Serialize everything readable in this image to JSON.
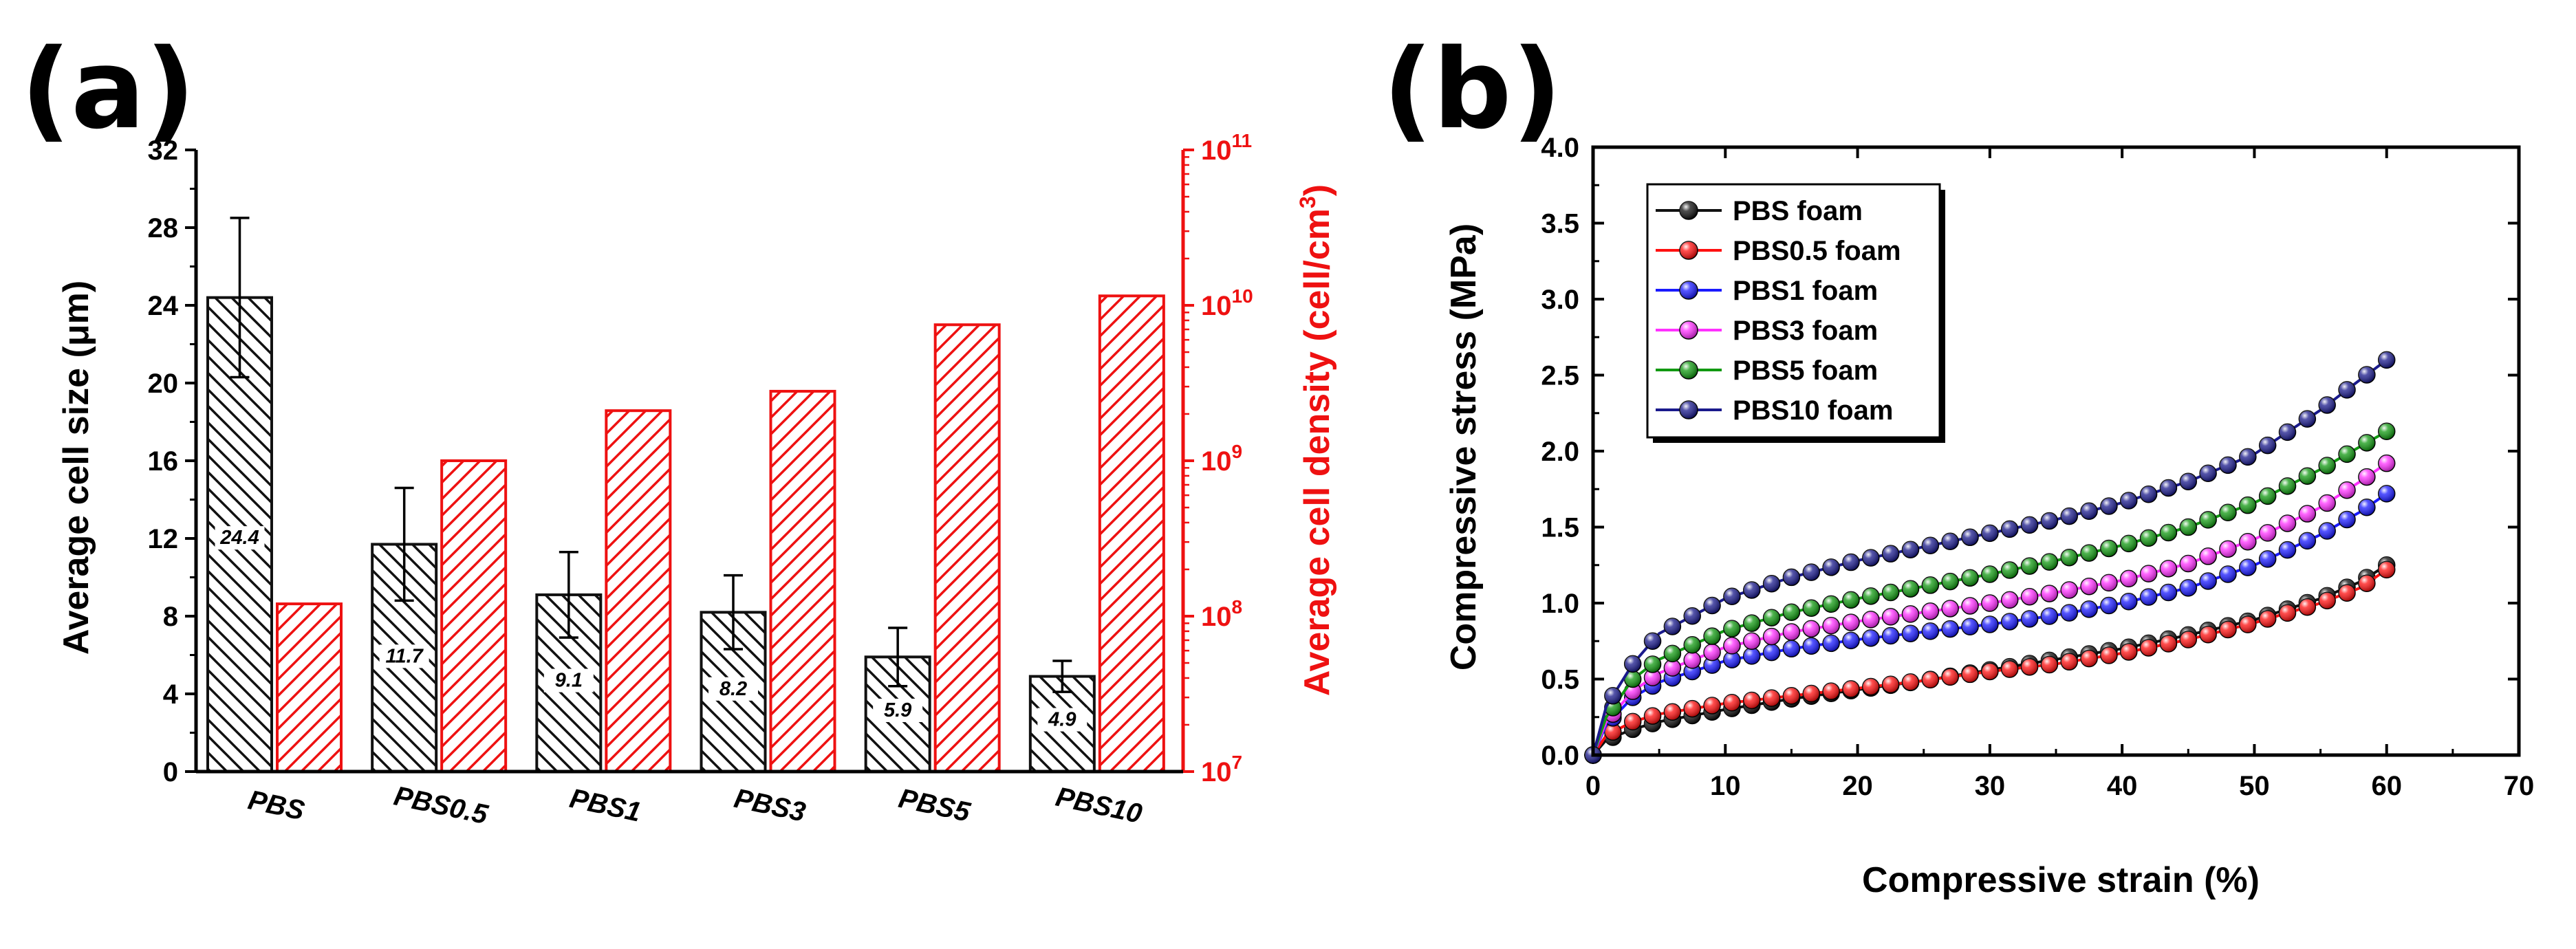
{
  "figure": {
    "panel_a_label": "(a)",
    "panel_b_label": "(b)"
  },
  "colors": {
    "bar_black": "#111111",
    "bar_red": "#ee1111",
    "series": [
      "#111111",
      "#ff1010",
      "#1a1aff",
      "#ff30ff",
      "#119911",
      "#1a1a8c"
    ]
  },
  "chart_data": [
    {
      "type": "bar",
      "title": "",
      "categories": [
        "PBS",
        "PBS0.5",
        "PBS1",
        "PBS3",
        "PBS5",
        "PBS10"
      ],
      "xlabel": "",
      "ylabel": "Average cell size (μm)",
      "ylim": [
        0,
        32
      ],
      "yticks": [
        0,
        4,
        8,
        12,
        16,
        20,
        24,
        28,
        32
      ],
      "y2label_main": "Average cell density (cell/cm",
      "y2label_sup": "3",
      "y2label_end": ")",
      "y2scale": "log",
      "y2lim_exponent": [
        7,
        11
      ],
      "y2ticks": [
        {
          "base": "10",
          "exp": "7",
          "power": 7
        },
        {
          "base": "10",
          "exp": "8",
          "power": 8
        },
        {
          "base": "10",
          "exp": "9",
          "power": 9
        },
        {
          "base": "10",
          "exp": "10",
          "power": 10
        },
        {
          "base": "10",
          "exp": "11",
          "power": 11
        }
      ],
      "series": [
        {
          "name": "Average cell size",
          "axis": "left",
          "color": "#111111",
          "hatch": "back-diagonal",
          "values": [
            24.4,
            11.7,
            9.1,
            8.2,
            5.9,
            4.9
          ],
          "labels": [
            "24.4",
            "11.7",
            "9.1",
            "8.2",
            "5.9",
            "4.9"
          ],
          "errors": [
            4.1,
            2.9,
            2.2,
            1.9,
            1.5,
            0.8
          ]
        },
        {
          "name": "Average cell density",
          "axis": "right",
          "color": "#ee1111",
          "hatch": "forward-diagonal",
          "values": [
            120000000.0,
            1000000000.0,
            2100000000.0,
            2800000000.0,
            7500000000.0,
            11500000000.0
          ]
        }
      ]
    },
    {
      "type": "scatter",
      "title": "",
      "xlabel": "Compressive strain (%)",
      "ylabel": "Compressive stress (MPa)",
      "xlim": [
        0,
        70
      ],
      "ylim": [
        0,
        4.0
      ],
      "xticks": [
        "0",
        "10",
        "20",
        "30",
        "40",
        "50",
        "60",
        "70"
      ],
      "yticks": [
        "0.0",
        "0.5",
        "1.0",
        "1.5",
        "2.0",
        "2.5",
        "3.0",
        "3.5",
        "4.0"
      ],
      "legend_position": "top-left",
      "marker_step_percent": 1.5,
      "series": [
        {
          "name": "PBS foam",
          "color": "#111111",
          "x": [
            0,
            1,
            3,
            5,
            10,
            15,
            20,
            25,
            30,
            35,
            40,
            45,
            50,
            55,
            58,
            60
          ],
          "y": [
            0.0,
            0.1,
            0.17,
            0.22,
            0.3,
            0.37,
            0.43,
            0.49,
            0.56,
            0.63,
            0.7,
            0.79,
            0.89,
            1.03,
            1.14,
            1.25
          ]
        },
        {
          "name": "PBS0.5 foam",
          "color": "#ff1010",
          "x": [
            0,
            1,
            3,
            5,
            10,
            15,
            20,
            25,
            30,
            35,
            40,
            45,
            50,
            55,
            58,
            60
          ],
          "y": [
            0.0,
            0.13,
            0.22,
            0.27,
            0.34,
            0.39,
            0.44,
            0.49,
            0.55,
            0.6,
            0.67,
            0.76,
            0.87,
            1.0,
            1.1,
            1.22
          ]
        },
        {
          "name": "PBS1 foam",
          "color": "#1a1aff",
          "x": [
            0,
            1,
            3,
            5,
            10,
            15,
            20,
            25,
            30,
            35,
            40,
            45,
            50,
            55,
            58,
            60
          ],
          "y": [
            0.0,
            0.2,
            0.38,
            0.48,
            0.62,
            0.7,
            0.76,
            0.81,
            0.86,
            0.92,
            1.0,
            1.1,
            1.25,
            1.45,
            1.6,
            1.72
          ]
        },
        {
          "name": "PBS3 foam",
          "color": "#ff30ff",
          "x": [
            0,
            1,
            3,
            5,
            10,
            15,
            20,
            25,
            30,
            35,
            40,
            45,
            50,
            55,
            58,
            60
          ],
          "y": [
            0.0,
            0.22,
            0.42,
            0.54,
            0.71,
            0.81,
            0.88,
            0.94,
            1.0,
            1.07,
            1.15,
            1.26,
            1.42,
            1.63,
            1.8,
            1.92
          ]
        },
        {
          "name": "PBS5 foam",
          "color": "#119911",
          "x": [
            0,
            1,
            3,
            5,
            10,
            15,
            20,
            25,
            30,
            35,
            40,
            45,
            50,
            55,
            58,
            60
          ],
          "y": [
            0.0,
            0.25,
            0.5,
            0.63,
            0.82,
            0.94,
            1.03,
            1.11,
            1.19,
            1.28,
            1.38,
            1.5,
            1.66,
            1.88,
            2.03,
            2.13
          ]
        },
        {
          "name": "PBS10 foam",
          "color": "#1a1a8c",
          "x": [
            0,
            1,
            3,
            5,
            10,
            15,
            20,
            25,
            30,
            35,
            40,
            45,
            50,
            55,
            58,
            60
          ],
          "y": [
            0.0,
            0.32,
            0.6,
            0.8,
            1.03,
            1.17,
            1.28,
            1.37,
            1.46,
            1.55,
            1.66,
            1.8,
            1.98,
            2.27,
            2.47,
            2.6
          ]
        }
      ]
    }
  ]
}
